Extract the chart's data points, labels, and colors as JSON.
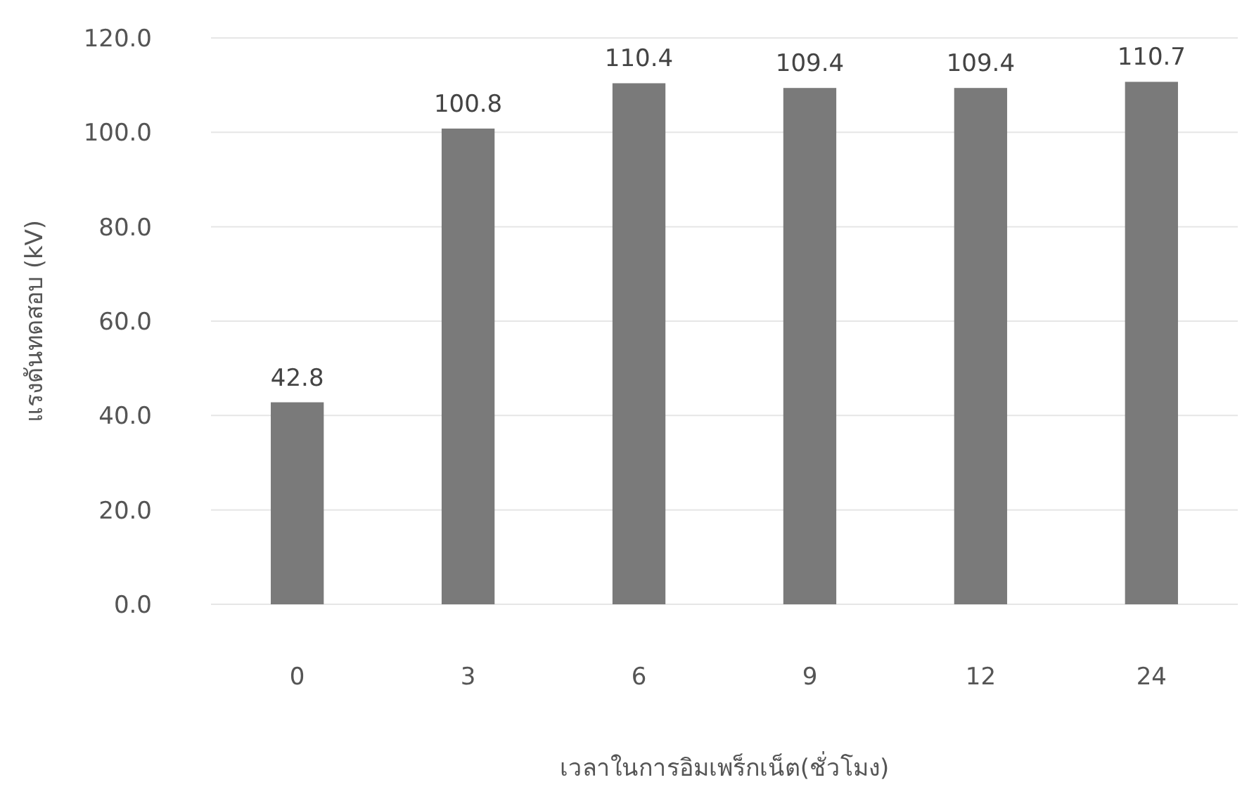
{
  "chart_data": {
    "type": "bar",
    "xlabel": "เวลาในการอิมเพร็กเน็ต(ชั่วโมง)",
    "ylabel": "แรงดันทดสอบ (kV)",
    "categories": [
      "0",
      "3",
      "6",
      "9",
      "12",
      "24"
    ],
    "values": [
      42.8,
      100.8,
      110.4,
      109.4,
      109.4,
      110.7
    ],
    "color": "#7a7a7a",
    "ylim": [
      0,
      120
    ],
    "yticks": [
      {
        "value": 0,
        "label": "0.0"
      },
      {
        "value": 20,
        "label": "20.0"
      },
      {
        "value": 40,
        "label": "40.0"
      },
      {
        "value": 60,
        "label": "60.0"
      },
      {
        "value": 80,
        "label": "80.0"
      },
      {
        "value": 100,
        "label": "100.0"
      },
      {
        "value": 120,
        "label": "120.0"
      }
    ],
    "grid": "y",
    "data_labels": true
  }
}
